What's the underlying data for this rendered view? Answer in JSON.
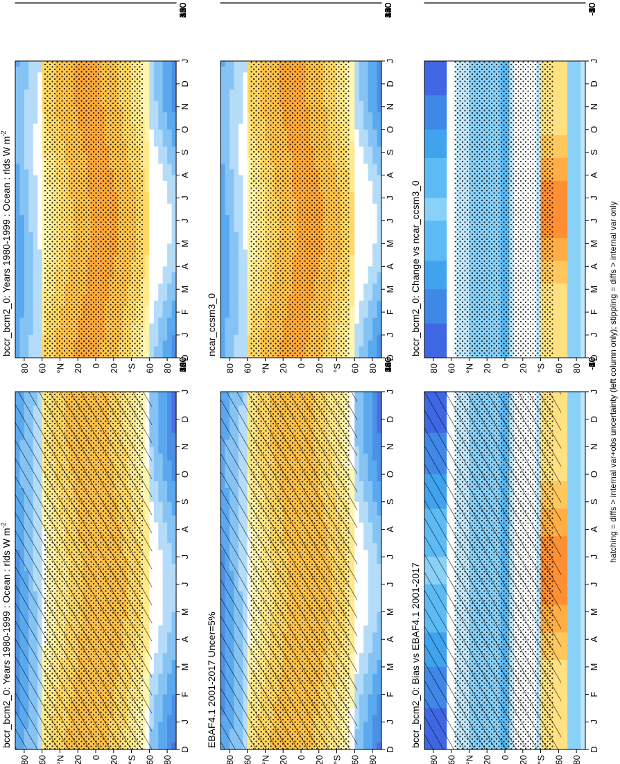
{
  "footer_note": "hatching = diffs > internal var+obs uncertainty (left column only); stippling = diffs > internal var only",
  "colors": {
    "abs_scale": [
      "#2f1fd6",
      "#3d4ee0",
      "#4a6fe0",
      "#4b8fe6",
      "#5aa9ef",
      "#86c3f5",
      "#b4dcf8",
      "#ffffff",
      "#ffffff",
      "#fff6b0",
      "#ffe98a",
      "#ffd866",
      "#ffc24a",
      "#ffa93a",
      "#ff8a2e",
      "#ff6a22",
      "#f24a18",
      "#d82a10",
      "#c00000"
    ],
    "diff_scale": [
      "#2a1bd0",
      "#3a45e0",
      "#3f67e3",
      "#3f88e8",
      "#3fa3ee",
      "#5cbbf4",
      "#8ad1f8",
      "#c3e8fb",
      "#ffffff",
      "#ffffff",
      "#fff3a6",
      "#ffe182",
      "#ffc85e",
      "#ffae45",
      "#ff8f33",
      "#f86a25",
      "#e64418",
      "#d0200c",
      "#c00000"
    ]
  },
  "chart_data": [
    {
      "type": "heatmap",
      "title": "bccr_bcm2_0: Years 1980-1999 : Ocean : rlds W m",
      "title_superscript": "-2",
      "x_categories": [
        "J",
        "F",
        "M",
        "A",
        "M",
        "J",
        "J",
        "A",
        "S",
        "O",
        "N",
        "D",
        "J"
      ],
      "x_first_label": "D",
      "y_ticks": [
        "80",
        "60",
        "°N",
        "20",
        "0",
        "20",
        "°S",
        "60",
        "80"
      ],
      "colorbar": {
        "ticks": [
          "100",
          "140",
          "180",
          "220",
          "260",
          "300",
          "340",
          "380",
          "420",
          "460",
          "500"
        ],
        "range": [
          80,
          520
        ]
      },
      "overlay": "hatching+stippling"
    },
    {
      "type": "heatmap",
      "title": "bccr_bcm2_0: Years 1980-1999 : Ocean : rlds W m",
      "title_superscript": "-2",
      "x_categories": [
        "J",
        "F",
        "M",
        "A",
        "M",
        "J",
        "J",
        "A",
        "S",
        "O",
        "N",
        "D",
        "J"
      ],
      "x_first_label": "D",
      "y_ticks": [
        "80",
        "60",
        "°N",
        "20",
        "0",
        "20",
        "°S",
        "60",
        "80"
      ],
      "colorbar": {
        "ticks": [
          "100",
          "140",
          "180",
          "220",
          "260",
          "300",
          "340",
          "380",
          "420",
          "460",
          "500"
        ],
        "range": [
          80,
          520
        ]
      },
      "overlay": "stippling"
    },
    {
      "type": "heatmap",
      "title": "EBAF4.1 2001-2017 Uncer=5%",
      "title_superscript": "",
      "x_categories": [
        "J",
        "F",
        "M",
        "A",
        "M",
        "J",
        "J",
        "A",
        "S",
        "O",
        "N",
        "D",
        "J"
      ],
      "x_first_label": "D",
      "y_ticks": [
        "80",
        "60",
        "°N",
        "20",
        "0",
        "20",
        "°S",
        "60",
        "80"
      ],
      "colorbar": {
        "ticks": [
          "100",
          "140",
          "180",
          "220",
          "260",
          "300",
          "340",
          "380",
          "420",
          "460",
          "500"
        ],
        "range": [
          80,
          520
        ]
      },
      "overlay": "hatching+stippling"
    },
    {
      "type": "heatmap",
      "title": "ncar_ccsm3_0",
      "title_superscript": "",
      "x_categories": [
        "J",
        "F",
        "M",
        "A",
        "M",
        "J",
        "J",
        "A",
        "S",
        "O",
        "N",
        "D",
        "J"
      ],
      "x_first_label": "D",
      "y_ticks": [
        "80",
        "60",
        "°N",
        "20",
        "0",
        "20",
        "°S",
        "60",
        "80"
      ],
      "colorbar": {
        "ticks": [
          "100",
          "140",
          "180",
          "220",
          "260",
          "300",
          "340",
          "380",
          "420",
          "460",
          "500"
        ],
        "range": [
          80,
          520
        ]
      },
      "overlay": "stippling"
    },
    {
      "type": "heatmap",
      "title": "bccr_bcm2_0: Bias vs EBAF4.1 2001-2017",
      "title_superscript": "",
      "x_categories": [
        "J",
        "F",
        "M",
        "A",
        "M",
        "J",
        "J",
        "A",
        "S",
        "O",
        "N",
        "D",
        "J"
      ],
      "x_first_label": "D",
      "y_ticks": [
        "80",
        "60",
        "°N",
        "20",
        "0",
        "20",
        "°S",
        "60",
        "80"
      ],
      "colorbar": {
        "ticks": [
          "-50",
          "-40",
          "-30",
          "-20",
          "-10",
          "0",
          "10",
          "20",
          "30",
          "40",
          "50"
        ],
        "range": [
          -55,
          55
        ]
      },
      "overlay": "hatching+stippling"
    },
    {
      "type": "heatmap",
      "title": "bccr_bcm2_0: Change vs ncar_ccsm3_0",
      "title_superscript": "",
      "x_categories": [
        "J",
        "F",
        "M",
        "A",
        "M",
        "J",
        "J",
        "A",
        "S",
        "O",
        "N",
        "D",
        "J"
      ],
      "x_first_label": "D",
      "y_ticks": [
        "80",
        "60",
        "°N",
        "20",
        "0",
        "20",
        "°S",
        "60",
        "80"
      ],
      "colorbar": {
        "ticks": [
          "-50",
          "-40",
          "-30",
          "-20",
          "-10",
          "0",
          "10",
          "20",
          "30",
          "40",
          "50"
        ],
        "range": [
          -55,
          55
        ]
      },
      "overlay": "stippling"
    }
  ]
}
